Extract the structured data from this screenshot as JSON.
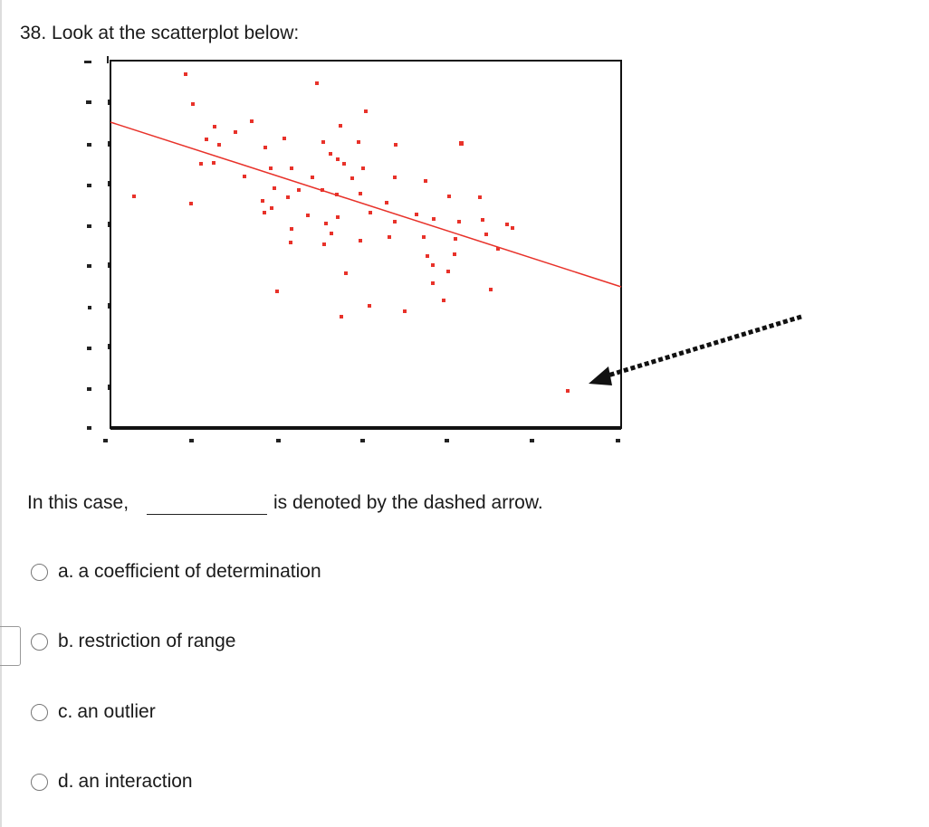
{
  "question": {
    "title": "38. Look at the scatterplot below:",
    "prompt_before": "In this case,",
    "prompt_after": "is denoted by the dashed arrow.",
    "options": [
      {
        "letter": "a.",
        "text": "a coefficient of determination"
      },
      {
        "letter": "b.",
        "text": "restriction of range"
      },
      {
        "letter": "c.",
        "text": "an outlier"
      },
      {
        "letter": "d.",
        "text": "an interaction"
      }
    ]
  }
}
